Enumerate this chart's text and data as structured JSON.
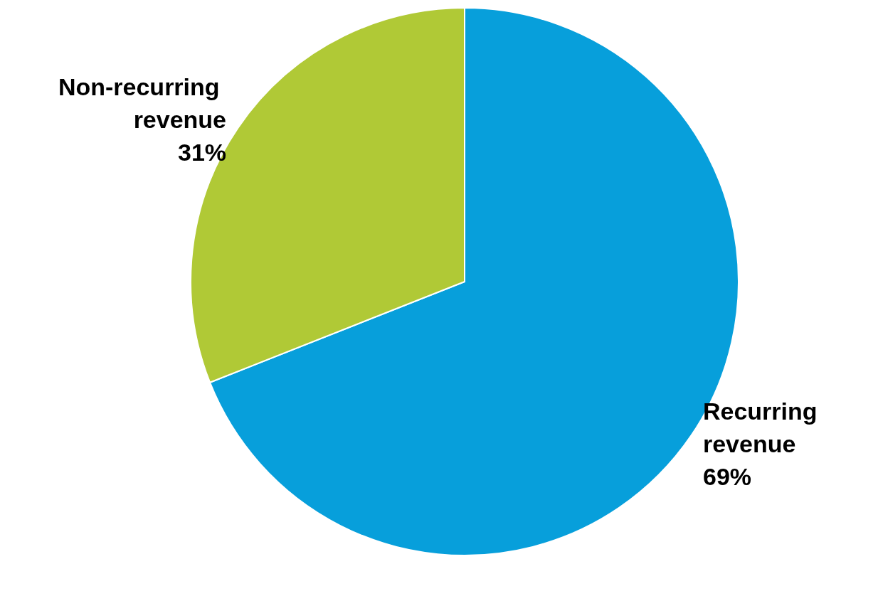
{
  "chart_data": {
    "type": "pie",
    "categories": [
      "Recurring revenue",
      "Non-recurring revenue"
    ],
    "values": [
      69,
      31
    ],
    "colors": [
      "#079fdb",
      "#b0c936"
    ],
    "value_labels": [
      "69%",
      "31%"
    ],
    "legend": false
  }
}
